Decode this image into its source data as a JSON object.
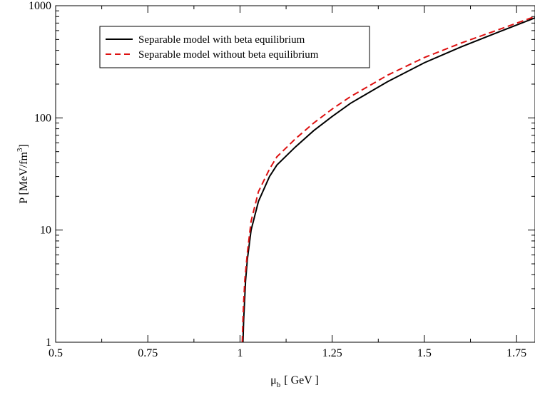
{
  "chart_data": {
    "type": "line",
    "xlabel_main": "μ",
    "xlabel_sub": "b",
    "xlabel_unit": "[ GeV ]",
    "ylabel_main": "P [MeV/fm",
    "ylabel_sup": "3",
    "ylabel_end": "]",
    "xlim": [
      0.5,
      1.8
    ],
    "ylim": [
      1,
      1000
    ],
    "yscale": "log",
    "grid": false,
    "legend_position": "top-left",
    "x_ticks": [
      0.5,
      0.75,
      1,
      1.25,
      1.5,
      1.75
    ],
    "x_tick_labels": [
      "0.5",
      "0.75",
      "1",
      "1.25",
      "1.5",
      "1.75"
    ],
    "y_ticks": [
      1,
      10,
      100,
      1000
    ],
    "y_tick_labels": [
      "1",
      "10",
      "100",
      "1000"
    ],
    "series": [
      {
        "name": "Separable model with beta equilibrium",
        "color": "#000000",
        "dash": "solid",
        "x": [
          1.008,
          1.01,
          1.012,
          1.015,
          1.02,
          1.03,
          1.05,
          1.08,
          1.1,
          1.15,
          1.2,
          1.25,
          1.3,
          1.4,
          1.5,
          1.6,
          1.7,
          1.8
        ],
        "y": [
          1.0,
          1.6,
          2.2,
          3.5,
          5.5,
          10,
          18,
          30,
          38,
          55,
          77,
          103,
          135,
          210,
          310,
          430,
          580,
          780
        ]
      },
      {
        "name": "Separable model without beta equilibrium",
        "color": "#dd1111",
        "dash": "dashed",
        "x": [
          1.006,
          1.008,
          1.01,
          1.013,
          1.02,
          1.03,
          1.05,
          1.08,
          1.1,
          1.15,
          1.2,
          1.25,
          1.3,
          1.4,
          1.5,
          1.6,
          1.7,
          1.8
        ],
        "y": [
          1.0,
          1.6,
          2.3,
          3.6,
          6.3,
          12,
          22,
          35,
          45,
          65,
          90,
          120,
          155,
          240,
          345,
          465,
          610,
          800
        ]
      }
    ]
  }
}
